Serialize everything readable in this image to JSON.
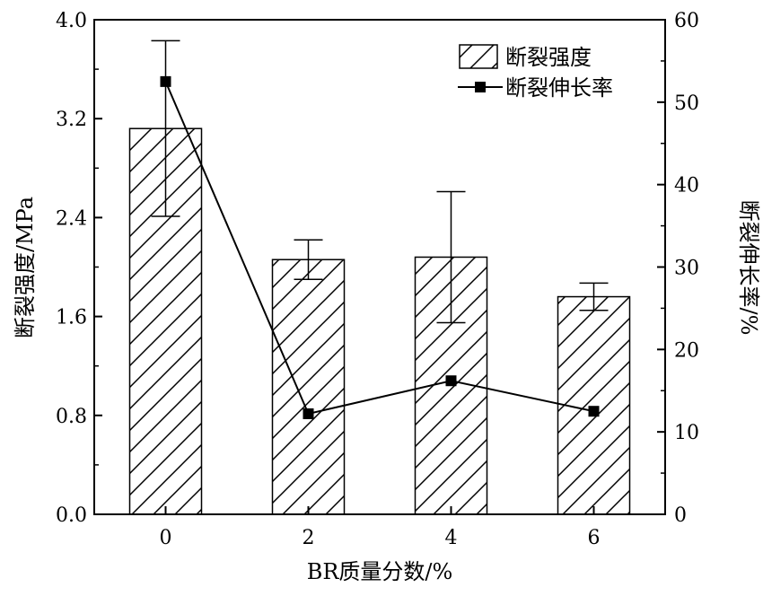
{
  "chart_data": {
    "type": "bar",
    "categories": [
      "0",
      "2",
      "4",
      "6"
    ],
    "xlabel": "BR质量分数/%",
    "ylabel_left": "断裂强度/MPa",
    "ylabel_right": "断裂伸长率/%",
    "ylim_left": [
      0,
      4.0
    ],
    "ylim_right": [
      0,
      60
    ],
    "yticks_left": [
      "0.0",
      "0.8",
      "1.6",
      "2.4",
      "3.2",
      "4.0"
    ],
    "yticks_right": [
      "0",
      "10",
      "20",
      "30",
      "40",
      "50",
      "60"
    ],
    "grid": false,
    "legend_position": "top-right",
    "series": [
      {
        "name": "断裂强度",
        "type": "bar",
        "axis": "left",
        "pattern": "diagonal-hatch",
        "values": [
          3.12,
          2.06,
          2.08,
          1.76
        ],
        "errors": [
          0.71,
          0.16,
          0.53,
          0.11
        ]
      },
      {
        "name": "断裂伸长率",
        "type": "line",
        "axis": "right",
        "marker": "square",
        "values": [
          52.5,
          12.2,
          16.2,
          12.5
        ]
      }
    ]
  },
  "colors": {
    "ink": "#000000",
    "background": "#ffffff"
  }
}
